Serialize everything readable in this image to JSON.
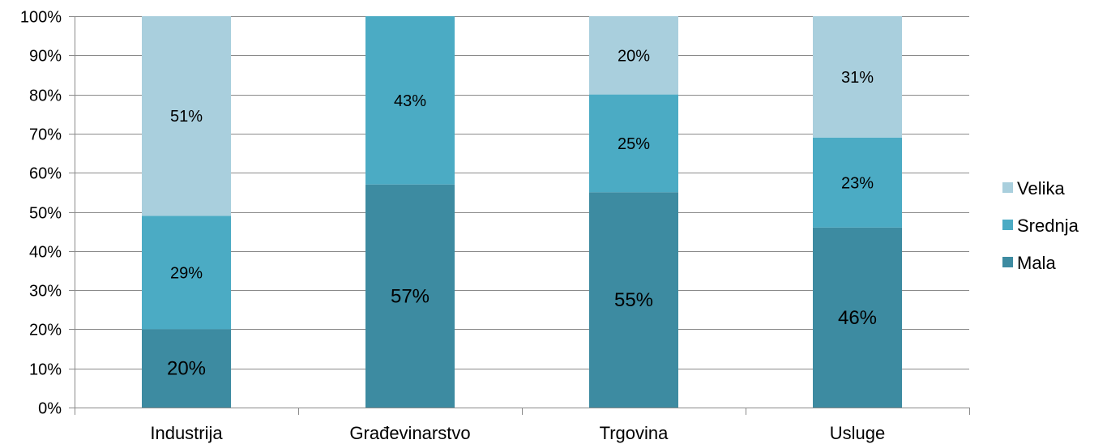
{
  "chart_data": {
    "type": "bar",
    "stacked": true,
    "percent": true,
    "title": "",
    "xlabel": "",
    "ylabel": "",
    "ylim": [
      0,
      100
    ],
    "yticks": [
      "0%",
      "10%",
      "20%",
      "30%",
      "40%",
      "50%",
      "60%",
      "70%",
      "80%",
      "90%",
      "100%"
    ],
    "categories": [
      "Industrija",
      "Građevinarstvo",
      "Trgovina",
      "Usluge"
    ],
    "series": [
      {
        "name": "Mala",
        "color": "#3d8ba1",
        "values": [
          20,
          57,
          55,
          46
        ],
        "labels": [
          "20%",
          "57%",
          "55%",
          "46%"
        ]
      },
      {
        "name": "Srednja",
        "color": "#4babc4",
        "values": [
          29,
          43,
          25,
          23
        ],
        "labels": [
          "29%",
          "43%",
          "25%",
          "23%"
        ]
      },
      {
        "name": "Velika",
        "color": "#a9cfdd",
        "values": [
          51,
          0,
          20,
          31
        ],
        "labels": [
          "51%",
          "",
          "20%",
          "31%"
        ]
      }
    ],
    "legend": {
      "position": "right",
      "order": [
        "Velika",
        "Srednja",
        "Mala"
      ]
    },
    "grid": true,
    "gridColor": "#8a8a8a"
  }
}
